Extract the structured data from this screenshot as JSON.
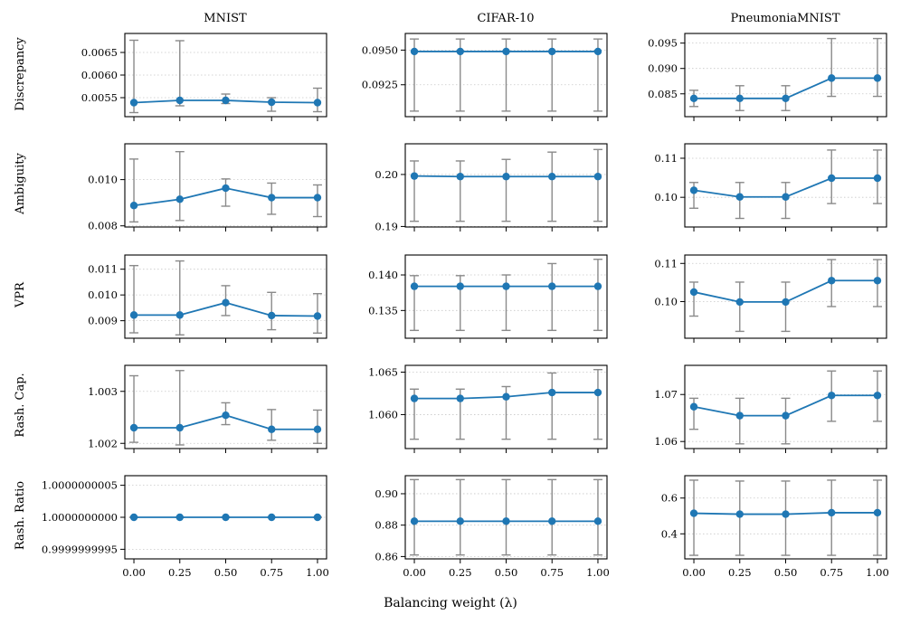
{
  "colors": {
    "series": "#1f77b4",
    "errorbar": "#8a8a8a",
    "grid": "#c8c8c8"
  },
  "figure": {
    "xlabel": "Balancing weight (λ)",
    "x_tick_labels": [
      "0.00",
      "0.25",
      "0.50",
      "0.75",
      "1.00"
    ],
    "columns": [
      "MNIST",
      "CIFAR-10",
      "PneumoniaMNIST"
    ],
    "rows": [
      "Discrepancy",
      "Ambiguity",
      "VPR",
      "Rash. Cap.",
      "Rash. Ratio"
    ]
  },
  "chart_data": [
    {
      "type": "line",
      "row": "Discrepancy",
      "dataset": "MNIST",
      "x": [
        0,
        0.25,
        0.5,
        0.75,
        1
      ],
      "y": [
        0.00539,
        0.00544,
        0.00544,
        0.0054,
        0.00539
      ],
      "err_low": [
        0.00517,
        0.00532,
        0.00537,
        0.0052,
        0.00519
      ],
      "err_high": [
        0.00677,
        0.00676,
        0.00558,
        0.0055,
        0.00571
      ],
      "ylim": [
        0.00508,
        0.00692
      ],
      "yticks": [
        0.0055,
        0.006,
        0.0065
      ],
      "ytick_labels": [
        "0.0055",
        "0.0060",
        "0.0065"
      ]
    },
    {
      "type": "line",
      "row": "Discrepancy",
      "dataset": "CIFAR-10",
      "x": [
        0,
        0.25,
        0.5,
        0.75,
        1
      ],
      "y": [
        0.0949,
        0.0949,
        0.0949,
        0.0949,
        0.0949
      ],
      "err_low": [
        0.0906,
        0.0906,
        0.0906,
        0.0906,
        0.0906
      ],
      "err_high": [
        0.0958,
        0.0958,
        0.0958,
        0.0958,
        0.0958
      ],
      "ylim": [
        0.0902,
        0.0962
      ],
      "yticks": [
        0.0925,
        0.095
      ],
      "ytick_labels": [
        "0.0925",
        "0.0950"
      ]
    },
    {
      "type": "line",
      "row": "Discrepancy",
      "dataset": "PneumoniaMNIST",
      "x": [
        0,
        0.25,
        0.5,
        0.75,
        1
      ],
      "y": [
        0.0841,
        0.0841,
        0.0841,
        0.0881,
        0.0881
      ],
      "err_low": [
        0.0825,
        0.0817,
        0.0817,
        0.0845,
        0.0845
      ],
      "err_high": [
        0.0857,
        0.0866,
        0.0866,
        0.0959,
        0.0959
      ],
      "ylim": [
        0.0805,
        0.0969
      ],
      "yticks": [
        0.085,
        0.09,
        0.095
      ],
      "ytick_labels": [
        "0.085",
        "0.090",
        "0.095"
      ]
    },
    {
      "type": "line",
      "row": "Ambiguity",
      "dataset": "MNIST",
      "x": [
        0,
        0.25,
        0.5,
        0.75,
        1
      ],
      "y": [
        0.00888,
        0.00915,
        0.00963,
        0.00922,
        0.00922
      ],
      "err_low": [
        0.00817,
        0.00823,
        0.00885,
        0.0085,
        0.0084
      ],
      "err_high": [
        0.01089,
        0.01121,
        0.01003,
        0.00985,
        0.00977
      ],
      "ylim": [
        0.00795,
        0.01155
      ],
      "yticks": [
        0.008,
        0.01
      ],
      "ytick_labels": [
        "0.008",
        "0.010"
      ]
    },
    {
      "type": "line",
      "row": "Ambiguity",
      "dataset": "CIFAR-10",
      "x": [
        0,
        0.25,
        0.5,
        0.75,
        1
      ],
      "y": [
        0.1997,
        0.1996,
        0.1996,
        0.1996,
        0.1996
      ],
      "err_low": [
        0.191,
        0.191,
        0.191,
        0.191,
        0.191
      ],
      "err_high": [
        0.2026,
        0.2026,
        0.2029,
        0.2043,
        0.2048
      ],
      "ylim": [
        0.1899,
        0.2059
      ],
      "yticks": [
        0.19,
        0.2
      ],
      "ytick_labels": [
        "0.19",
        "0.20"
      ]
    },
    {
      "type": "line",
      "row": "Ambiguity",
      "dataset": "PneumoniaMNIST",
      "x": [
        0,
        0.25,
        0.5,
        0.75,
        1
      ],
      "y": [
        0.1018,
        0.1001,
        0.1001,
        0.1049,
        0.1049
      ],
      "err_low": [
        0.0972,
        0.0946,
        0.0946,
        0.0984,
        0.0984
      ],
      "err_high": [
        0.1038,
        0.1038,
        0.1038,
        0.1121,
        0.1121
      ],
      "ylim": [
        0.0924,
        0.1137
      ],
      "yticks": [
        0.1,
        0.11
      ],
      "ytick_labels": [
        "0.10",
        "0.11"
      ]
    },
    {
      "type": "line",
      "row": "VPR",
      "dataset": "MNIST",
      "x": [
        0,
        0.25,
        0.5,
        0.75,
        1
      ],
      "y": [
        0.00922,
        0.00922,
        0.0097,
        0.0092,
        0.00918
      ],
      "err_low": [
        0.00853,
        0.00845,
        0.0092,
        0.00865,
        0.00852
      ],
      "err_high": [
        0.01114,
        0.01132,
        0.01036,
        0.0101,
        0.01005
      ],
      "ylim": [
        0.00832,
        0.01155
      ],
      "yticks": [
        0.009,
        0.01,
        0.011
      ],
      "ytick_labels": [
        "0.009",
        "0.010",
        "0.011"
      ]
    },
    {
      "type": "line",
      "row": "VPR",
      "dataset": "CIFAR-10",
      "x": [
        0,
        0.25,
        0.5,
        0.75,
        1
      ],
      "y": [
        0.1384,
        0.1384,
        0.1384,
        0.1384,
        0.1384
      ],
      "err_low": [
        0.1322,
        0.1322,
        0.1322,
        0.1322,
        0.1322
      ],
      "err_high": [
        0.1399,
        0.1399,
        0.14,
        0.1416,
        0.1422
      ],
      "ylim": [
        0.1311,
        0.1428
      ],
      "yticks": [
        0.135,
        0.14
      ],
      "ytick_labels": [
        "0.135",
        "0.140"
      ]
    },
    {
      "type": "line",
      "row": "VPR",
      "dataset": "PneumoniaMNIST",
      "x": [
        0,
        0.25,
        0.5,
        0.75,
        1
      ],
      "y": [
        0.1025,
        0.0999,
        0.0999,
        0.1055,
        0.1055
      ],
      "err_low": [
        0.0962,
        0.0922,
        0.0922,
        0.0987,
        0.0987
      ],
      "err_high": [
        0.1051,
        0.1051,
        0.1051,
        0.111,
        0.111
      ],
      "ylim": [
        0.0904,
        0.1122
      ],
      "yticks": [
        0.1,
        0.11
      ],
      "ytick_labels": [
        "0.10",
        "0.11"
      ]
    },
    {
      "type": "line",
      "row": "Rash. Cap.",
      "dataset": "MNIST",
      "x": [
        0,
        0.25,
        0.5,
        0.75,
        1
      ],
      "y": [
        1.0023,
        1.0023,
        1.00254,
        1.00227,
        1.00227
      ],
      "err_low": [
        1.00202,
        1.00197,
        1.00236,
        1.00206,
        1.002
      ],
      "err_high": [
        1.0033,
        1.0034,
        1.00278,
        1.00265,
        1.00264
      ],
      "ylim": [
        1.0019,
        1.0035
      ],
      "yticks": [
        1.002,
        1.003
      ],
      "ytick_labels": [
        "1.002",
        "1.003"
      ]
    },
    {
      "type": "line",
      "row": "Rash. Cap.",
      "dataset": "CIFAR-10",
      "x": [
        0,
        0.25,
        0.5,
        0.75,
        1
      ],
      "y": [
        1.0619,
        1.0619,
        1.0621,
        1.0626,
        1.0626
      ],
      "err_low": [
        1.0571,
        1.0571,
        1.0571,
        1.0571,
        1.0571
      ],
      "err_high": [
        1.063,
        1.063,
        1.0633,
        1.0649,
        1.0653
      ],
      "ylim": [
        1.056,
        1.0658
      ],
      "yticks": [
        1.06,
        1.065
      ],
      "ytick_labels": [
        "1.060",
        "1.065"
      ]
    },
    {
      "type": "line",
      "row": "Rash. Cap.",
      "dataset": "PneumoniaMNIST",
      "x": [
        0,
        0.25,
        0.5,
        0.75,
        1
      ],
      "y": [
        1.0674,
        1.0655,
        1.0655,
        1.0698,
        1.0698
      ],
      "err_low": [
        1.0626,
        1.0595,
        1.0595,
        1.0643,
        1.0643
      ],
      "err_high": [
        1.0692,
        1.0692,
        1.0692,
        1.075,
        1.075
      ],
      "ylim": [
        1.0585,
        1.0762
      ],
      "yticks": [
        1.06,
        1.07
      ],
      "ytick_labels": [
        "1.06",
        "1.07"
      ]
    },
    {
      "type": "line",
      "row": "Rash. Ratio",
      "dataset": "MNIST",
      "x": [
        0,
        0.25,
        0.5,
        0.75,
        1
      ],
      "y": [
        1.0,
        1.0,
        1.0,
        1.0,
        1.0
      ],
      "err_low": [
        1.0,
        1.0,
        1.0,
        1.0,
        1.0
      ],
      "err_high": [
        1.0,
        1.0,
        1.0,
        1.0,
        1.0
      ],
      "ylim": [
        0.99999999935,
        1.00000000065
      ],
      "yticks": [
        0.9999999995,
        1.0,
        1.0000000005
      ],
      "ytick_labels": [
        "0.9999999995",
        "1.0000000000",
        "1.0000000005"
      ]
    },
    {
      "type": "line",
      "row": "Rash. Ratio",
      "dataset": "CIFAR-10",
      "x": [
        0,
        0.25,
        0.5,
        0.75,
        1
      ],
      "y": [
        0.8825,
        0.8825,
        0.8825,
        0.8825,
        0.8825
      ],
      "err_low": [
        0.861,
        0.861,
        0.861,
        0.861,
        0.861
      ],
      "err_high": [
        0.909,
        0.909,
        0.909,
        0.909,
        0.909
      ],
      "ylim": [
        0.8585,
        0.9115
      ],
      "yticks": [
        0.86,
        0.88,
        0.9
      ],
      "ytick_labels": [
        "0.86",
        "0.88",
        "0.90"
      ]
    },
    {
      "type": "line",
      "row": "Rash. Ratio",
      "dataset": "PneumoniaMNIST",
      "x": [
        0,
        0.25,
        0.5,
        0.75,
        1
      ],
      "y": [
        0.515,
        0.51,
        0.51,
        0.518,
        0.518
      ],
      "err_low": [
        0.28,
        0.28,
        0.28,
        0.28,
        0.28
      ],
      "err_high": [
        0.7,
        0.695,
        0.695,
        0.7,
        0.7
      ],
      "ylim": [
        0.26,
        0.725
      ],
      "yticks": [
        0.4,
        0.6
      ],
      "ytick_labels": [
        "0.4",
        "0.6"
      ]
    }
  ]
}
